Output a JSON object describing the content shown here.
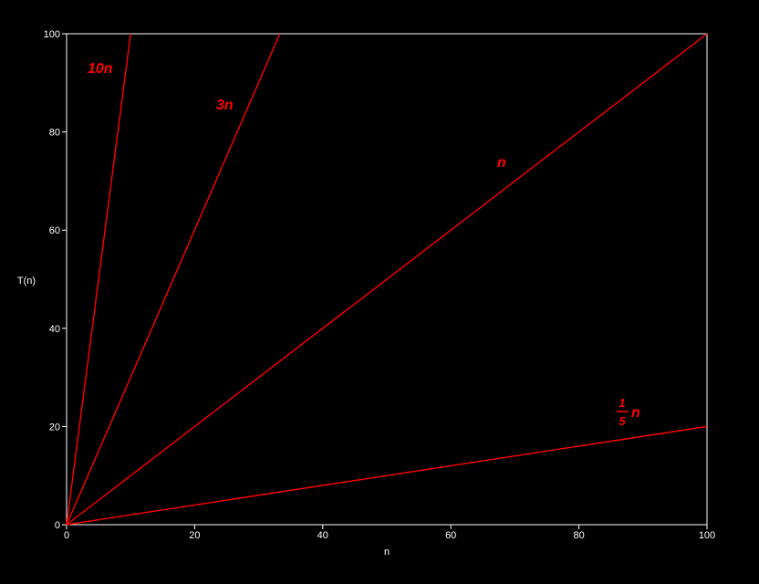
{
  "chart_data": {
    "type": "line",
    "xlabel": "n",
    "ylabel": "T(n)",
    "xlim": [
      0,
      100
    ],
    "ylim": [
      0,
      100
    ],
    "xticks": [
      "0",
      "20",
      "40",
      "60",
      "80",
      "100"
    ],
    "yticks": [
      "0",
      "20",
      "40",
      "60",
      "80",
      "100"
    ],
    "grid": false,
    "background_color": "#000000",
    "axis_color": "#ffffff",
    "series_color": "#ff0000",
    "series": [
      {
        "name": "10n",
        "slope": 10,
        "points": [
          [
            0,
            0
          ],
          [
            10,
            100
          ]
        ]
      },
      {
        "name": "3n",
        "slope": 3,
        "points": [
          [
            0,
            0
          ],
          [
            33.3,
            100
          ]
        ]
      },
      {
        "name": "n",
        "slope": 1,
        "points": [
          [
            0,
            0
          ],
          [
            100,
            100
          ]
        ]
      },
      {
        "name": "1/5 n",
        "slope": 0.2,
        "points": [
          [
            0,
            0
          ],
          [
            100,
            20
          ]
        ]
      }
    ],
    "annotations": {
      "label_10n": "10n",
      "label_3n": "3n",
      "label_n": "n",
      "fraction_numerator": "1",
      "fraction_denominator": "5",
      "fraction_variable": "n"
    }
  }
}
